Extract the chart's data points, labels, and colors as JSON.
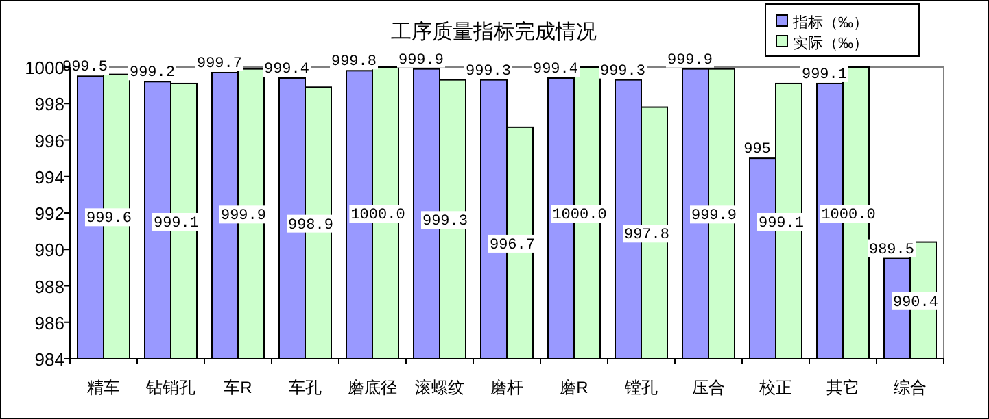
{
  "chart_data": {
    "type": "bar",
    "title": "工序质量指标完成情况",
    "categories": [
      "精车",
      "钻销孔",
      "车R",
      "车孔",
      "磨底径",
      "滚螺纹",
      "磨杆",
      "磨R",
      "镗孔",
      "压合",
      "校正",
      "其它",
      "综合"
    ],
    "series": [
      {
        "name": "指标（‰）",
        "color": "#9999ff",
        "values": [
          999.5,
          999.2,
          999.7,
          999.4,
          999.8,
          999.9,
          999.3,
          999.4,
          999.3,
          999.9,
          995,
          999.1,
          989.5
        ],
        "value_labels": [
          "999.5",
          "999.2",
          "999.7",
          "999.4",
          "999.8",
          "999.9",
          "999.3",
          "999.4",
          "999.3",
          "999.9",
          "995",
          "999.1",
          "989.5"
        ]
      },
      {
        "name": "实际（‰）",
        "color": "#ccffcc",
        "values": [
          999.6,
          999.1,
          999.9,
          998.9,
          1000.0,
          999.3,
          996.7,
          1000.0,
          997.8,
          999.9,
          999.1,
          1000.0,
          990.4
        ],
        "value_labels": [
          "999.6",
          "999.1",
          "999.9",
          "998.9",
          "1000.0",
          "999.3",
          "996.7",
          "1000.0",
          "997.8",
          "999.9",
          "999.1",
          "1000.0",
          "990.4"
        ]
      }
    ],
    "ylim": [
      984,
      1000
    ],
    "yticks": [
      984,
      986,
      988,
      990,
      992,
      994,
      996,
      998,
      1000
    ],
    "legend": "top right",
    "grid": false
  }
}
